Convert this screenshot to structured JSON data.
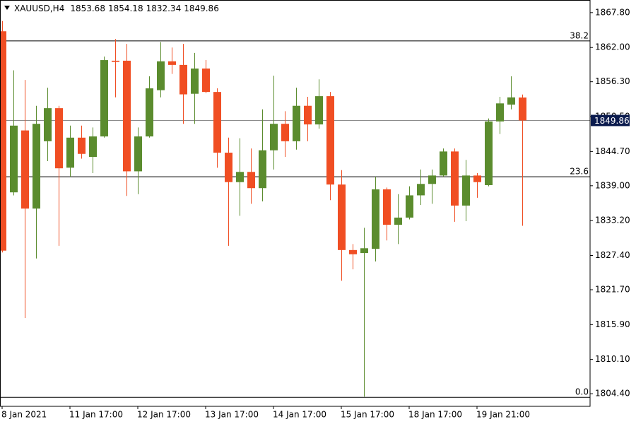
{
  "chart_data": {
    "type": "candlestick",
    "title": "XAUUSD,H4",
    "categories": [
      "8 Jan 2021",
      null,
      null,
      null,
      null,
      null,
      "11 Jan 17:00",
      null,
      null,
      null,
      null,
      null,
      "12 Jan 17:00",
      null,
      null,
      null,
      null,
      null,
      "13 Jan 17:00",
      null,
      null,
      null,
      null,
      null,
      "14 Jan 17:00",
      null,
      null,
      null,
      null,
      null,
      "15 Jan 17:00",
      null,
      null,
      null,
      null,
      null,
      "18 Jan 17:00",
      null,
      null,
      null,
      null,
      null,
      "19 Jan 21:00",
      null,
      null,
      null,
      null
    ],
    "open": [
      1864.7,
      1837.9,
      1848.2,
      1835.2,
      1846.4,
      1851.9,
      1842.0,
      1847.0,
      1843.8,
      1847.2,
      1859.8,
      1859.8,
      1841.4,
      1847.2,
      1854.9,
      1859.7,
      1859.1,
      1854.3,
      1858.5,
      1854.6,
      1844.5,
      1839.6,
      1841.3,
      1838.6,
      1844.9,
      1849.3,
      1846.4,
      1852.3,
      1849.2,
      1853.9,
      1839.2,
      1828.3,
      1827.8,
      1828.5,
      1838.4,
      1832.5,
      1833.7,
      1837.4,
      1839.3,
      1840.7,
      1844.7,
      1835.7,
      1840.7,
      1839.1,
      1849.7,
      1852.5,
      1853.68
    ],
    "high": [
      1866.4,
      1858.2,
      1856.6,
      1852.3,
      1855.3,
      1852.3,
      1849.0,
      1849.0,
      1848.7,
      1860.5,
      1863.4,
      1862.6,
      1848.7,
      1857.2,
      1862.9,
      1862.0,
      1862.6,
      1861.1,
      1859.9,
      1855.2,
      1847.0,
      1846.9,
      1845.2,
      1851.7,
      1857.3,
      1851.4,
      1855.3,
      1853.8,
      1856.7,
      1854.6,
      1841.6,
      1829.3,
      1832.0,
      1840.5,
      1838.7,
      1837.6,
      1838.9,
      1841.7,
      1841.7,
      1845.2,
      1845.2,
      1843.3,
      1841.1,
      1850.2,
      1853.8,
      1857.2,
      1854.18
    ],
    "low": [
      1827.9,
      1837.4,
      1817.0,
      1826.9,
      1843.1,
      1829.0,
      1840.5,
      1843.5,
      1841.1,
      1847.0,
      1853.7,
      1837.3,
      1837.6,
      1847.0,
      1853.7,
      1857.6,
      1849.3,
      1849.3,
      1854.4,
      1842.0,
      1829.0,
      1834.0,
      1836.0,
      1836.4,
      1841.7,
      1843.8,
      1845.0,
      1846.4,
      1848.5,
      1836.6,
      1823.2,
      1825.1,
      1803.9,
      1826.4,
      1829.9,
      1829.3,
      1833.4,
      1835.8,
      1836.0,
      1840.5,
      1833.0,
      1833.1,
      1837.0,
      1838.9,
      1847.6,
      1851.7,
      1832.34
    ],
    "close": [
      1828.2,
      1849.0,
      1835.2,
      1849.3,
      1851.9,
      1841.9,
      1847.0,
      1844.3,
      1847.2,
      1859.9,
      1859.6,
      1841.4,
      1847.2,
      1855.2,
      1859.7,
      1859.1,
      1854.2,
      1858.5,
      1854.6,
      1844.5,
      1839.6,
      1841.3,
      1838.6,
      1844.9,
      1849.3,
      1846.4,
      1852.3,
      1849.2,
      1853.9,
      1839.2,
      1828.3,
      1827.6,
      1828.6,
      1838.4,
      1832.5,
      1833.7,
      1837.4,
      1839.3,
      1840.7,
      1844.7,
      1835.7,
      1840.7,
      1839.6,
      1849.7,
      1852.7,
      1853.7,
      1849.86
    ],
    "up_color": "#5b8c2e",
    "down_color": "#f04e23",
    "ylim": [
      1802.3,
      1869.9
    ],
    "yticks": [
      {
        "value": 1867.8,
        "label": "1867.80"
      },
      {
        "value": 1862,
        "label": "1862.00"
      },
      {
        "value": 1856.3,
        "label": "1856.30"
      },
      {
        "value": 1850.5,
        "label": "1850.50"
      },
      {
        "value": 1844.7,
        "label": "1844.70"
      },
      {
        "value": 1839,
        "label": "1839.00"
      },
      {
        "value": 1833.2,
        "label": "1833.20"
      },
      {
        "value": 1827.4,
        "label": "1827.40"
      },
      {
        "value": 1821.7,
        "label": "1821.70"
      },
      {
        "value": 1815.9,
        "label": "1815.90"
      },
      {
        "value": 1810.1,
        "label": "1810.10"
      },
      {
        "value": 1804.4,
        "label": "1804.40"
      }
    ],
    "levels": [
      {
        "label": "38.2",
        "value": 1863.1
      },
      {
        "label": "23.6",
        "value": 1840.5
      },
      {
        "label": "0.0",
        "value": 1803.8
      }
    ]
  }
}
